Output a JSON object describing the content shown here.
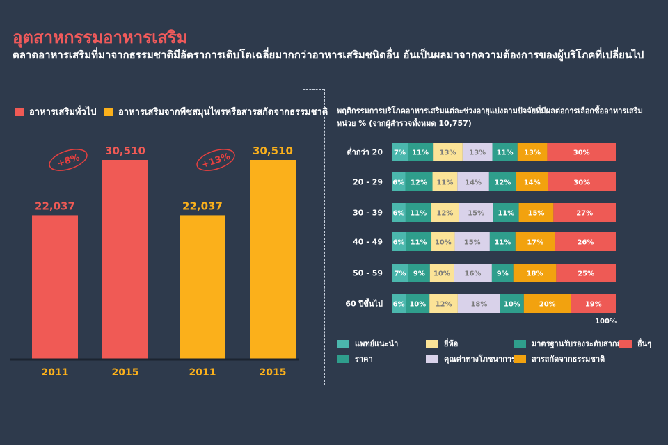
{
  "title": "อุตสาหกรรมอาหารเสริม",
  "subtitle": "ตลาดอาหารเสริมที่มาจากธรรมชาติมีอัตราการเติบโตเฉลี่ยมากกว่าอาหารเสริมชนิดอื่น อันเป็นผลมาจากความต้องการของผู้บริโภคที่เปลี่ยนไป",
  "colors": {
    "red": "#f05a55",
    "orange": "#fbb01b",
    "teal": "#4bb7ad",
    "green": "#2f9e8c",
    "yellow": "#fbe397",
    "lavender": "#d9d2ea",
    "darkorange": "#f2a20f",
    "coral": "#ee5a55",
    "background": "#2e3a4c"
  },
  "chart_data": [
    {
      "type": "bar",
      "legend": [
        {
          "label": "อาหารเสริมทั่วไป",
          "color": "#f05a55"
        },
        {
          "label": "อาหารเสริมจากพืชสมุนไพรหรือสารสกัดจากธรรมชาติ",
          "color": "#fbb01b"
        }
      ],
      "groups": [
        {
          "series": "อาหารเสริมทั่วไป",
          "color": "#f05a55",
          "growth": "+8%",
          "bars": [
            {
              "year": "2011",
              "value": 22037,
              "label": "22,037"
            },
            {
              "year": "2015",
              "value": 30510,
              "label": "30,510"
            }
          ]
        },
        {
          "series": "อาหารเสริมจากพืชสมุนไพรหรือสารสกัดจากธรรมชาติ",
          "color": "#fbb01b",
          "growth": "+13%",
          "bars": [
            {
              "year": "2011",
              "value": 22037,
              "label": "22,037"
            },
            {
              "year": "2015",
              "value": 30510,
              "label": "30,510"
            }
          ]
        }
      ]
    },
    {
      "type": "bar",
      "orientation": "horizontal",
      "stacked": true,
      "title": "พฤติกรรมการบริโภคอาหารเสริมแต่ละช่วงอายุแบ่งตามปัจจัยที่มีผลต่อการเลือกซื้ออาหารเสริม",
      "unit": "หน่วย % (จากผู้สำรวจทั้งหมด 10,757)",
      "total_label": "100%",
      "categories": [
        "ต่ำกว่า 20",
        "20 - 29",
        "30 - 39",
        "40 - 49",
        "50 - 59",
        "60 ปีขึ้นไป"
      ],
      "series": [
        {
          "name": "แพทย์แนะนำ",
          "color": "#4bb7ad",
          "values": [
            7,
            6,
            6,
            6,
            7,
            6
          ]
        },
        {
          "name": "ราคา",
          "color": "#2f9e8c",
          "values": [
            11,
            12,
            11,
            11,
            9,
            10
          ]
        },
        {
          "name": "ยี่ห้อ",
          "color": "#fbe397",
          "values": [
            13,
            11,
            12,
            10,
            10,
            12
          ]
        },
        {
          "name": "คุณค่าทางโภชนาการ",
          "color": "#d9d2ea",
          "values": [
            13,
            14,
            15,
            15,
            16,
            18
          ]
        },
        {
          "name": "มาตรฐานรับรองระดับสากล",
          "color": "#2f9e8c",
          "values": [
            11,
            12,
            11,
            11,
            9,
            10
          ]
        },
        {
          "name": "สารสกัดจากธรรมชาติ",
          "color": "#f2a20f",
          "values": [
            13,
            14,
            15,
            17,
            18,
            20
          ]
        },
        {
          "name": "อื่นๆ",
          "color": "#ee5a55",
          "values": [
            30,
            30,
            27,
            26,
            25,
            19
          ]
        }
      ],
      "legend_order": [
        "แพทย์แนะนำ",
        "ยี่ห้อ",
        "มาตรฐานรับรองระดับสากล",
        "อื่นๆ",
        "ราคา",
        "คุณค่าทางโภชนาการ",
        "สารสกัดจากธรรมชาติ"
      ]
    }
  ]
}
